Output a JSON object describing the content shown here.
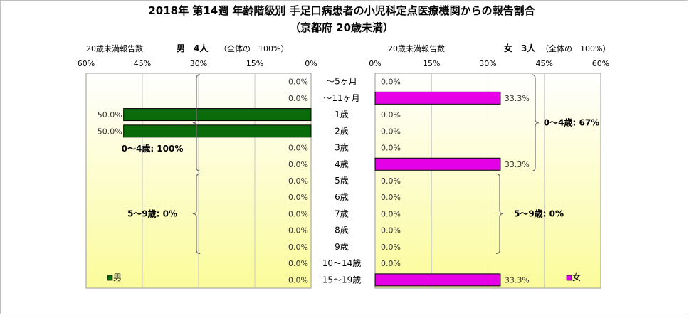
{
  "title_line1": "2018年 第14週 年齢階級別 手足口病患者の小児科定点医療機関からの報告割合",
  "title_line2": "（京都府 20歳未満）",
  "colors": {
    "male": "#0a6b0a",
    "female": "#e600e6",
    "panel_top": "#ffffff",
    "panel_bottom": "#fbfb9a"
  },
  "chart_data": [
    {
      "type": "bar",
      "orientation": "horizontal",
      "direction": "right-to-left",
      "header_left": "20歳未満報告数",
      "header_series": "男　4人",
      "header_note": "（全体の　100%）",
      "legend": "男",
      "legend_position": "bottom-left",
      "xlim": [
        0,
        60
      ],
      "ticks": [
        "60%",
        "45%",
        "30%",
        "15%",
        "0%"
      ],
      "categories": [
        "～5ヶ月",
        "～11ヶ月",
        "1歳",
        "2歳",
        "3歳",
        "4歳",
        "5歳",
        "6歳",
        "7歳",
        "8歳",
        "9歳",
        "10～14歳",
        "15～19歳"
      ],
      "values": [
        0,
        0,
        50,
        50,
        0,
        0,
        0,
        0,
        0,
        0,
        0,
        0,
        0
      ],
      "value_labels": [
        "0.0%",
        "0.0%",
        "50.0%",
        "50.0%",
        "0.0%",
        "0.0%",
        "0.0%",
        "0.0%",
        "0.0%",
        "0.0%",
        "0.0%",
        "0.0%",
        "0.0%"
      ],
      "groups": [
        {
          "label": "0～4歳: 100%",
          "value": 100
        },
        {
          "label": "5～9歳: 0%",
          "value": 0
        }
      ],
      "grid": true
    },
    {
      "type": "bar",
      "orientation": "horizontal",
      "direction": "left-to-right",
      "header_left": "20歳未満報告数",
      "header_series": "女　3人",
      "header_note": "（全体の　100%）",
      "legend": "女",
      "legend_position": "bottom-right",
      "xlim": [
        0,
        60
      ],
      "ticks": [
        "0%",
        "15%",
        "30%",
        "45%",
        "60%"
      ],
      "categories": [
        "～5ヶ月",
        "～11ヶ月",
        "1歳",
        "2歳",
        "3歳",
        "4歳",
        "5歳",
        "6歳",
        "7歳",
        "8歳",
        "9歳",
        "10～14歳",
        "15～19歳"
      ],
      "values": [
        0,
        33.3,
        0,
        0,
        0,
        33.3,
        0,
        0,
        0,
        0,
        0,
        0,
        33.3
      ],
      "value_labels": [
        "0.0%",
        "33.3%",
        "0.0%",
        "0.0%",
        "0.0%",
        "33.3%",
        "0.0%",
        "0.0%",
        "0.0%",
        "0.0%",
        "0.0%",
        "0.0%",
        "33.3%"
      ],
      "groups": [
        {
          "label": "0～4歳: 67%",
          "value": 67
        },
        {
          "label": "5～9歳: 0%",
          "value": 0
        }
      ],
      "grid": true
    }
  ]
}
